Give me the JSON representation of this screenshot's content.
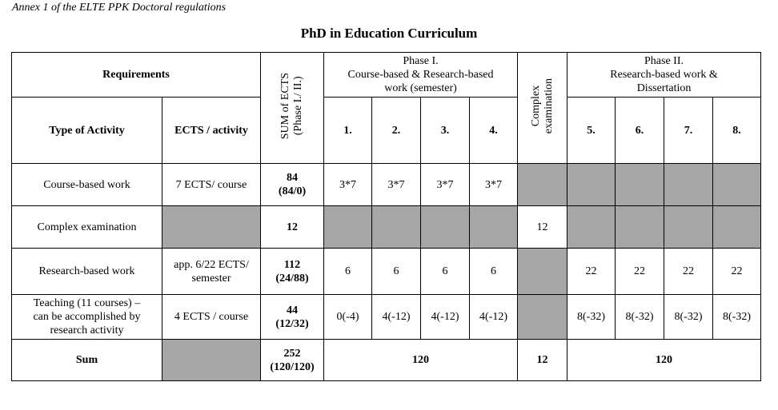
{
  "annex": "Annex 1 of the ELTE PPK Doctoral regulations",
  "title": "PhD in Education Curriculum",
  "header": {
    "requirements": "Requirements",
    "sum_line1": "SUM of ECTS",
    "sum_line2": "(Phase I./ II.)",
    "phase1_line1": "Phase I.",
    "phase1_line2": "Course-based & Research-based",
    "phase1_line3": "work (semester)",
    "complex_line1": "Complex",
    "complex_line2": "examination",
    "phase2_line1": "Phase II.",
    "phase2_line2": "Research-based work &",
    "phase2_line3": "Dissertation",
    "type_of_activity": "Type of Activity",
    "ects_per_activity": "ECTS / activity",
    "semesters": [
      "1.",
      "2.",
      "3.",
      "4.",
      "5.",
      "6.",
      "7.",
      "8."
    ]
  },
  "rows": [
    {
      "activity": "Course-based work",
      "ects": "7 ECTS/ course",
      "sum_line1": "84",
      "sum_line2": "(84/0)",
      "phase1": [
        "3*7",
        "3*7",
        "3*7",
        "3*7"
      ]
    },
    {
      "activity": "Complex examination",
      "sum": "12",
      "complex": "12"
    },
    {
      "activity": "Research-based work",
      "ects_line1": "app. 6/22 ECTS/",
      "ects_line2": "semester",
      "sum_line1": "112",
      "sum_line2": "(24/88)",
      "phase1": [
        "6",
        "6",
        "6",
        "6"
      ],
      "phase2": [
        "22",
        "22",
        "22",
        "22"
      ]
    },
    {
      "activity_line1": "Teaching (11 courses) –",
      "activity_line2": "can be accomplished by",
      "activity_line3": "research activity",
      "ects": "4 ECTS / course",
      "sum_line1": "44",
      "sum_line2": "(12/32)",
      "phase1": [
        "0(-4)",
        "4(-12)",
        "4(-12)",
        "4(-12)"
      ],
      "phase2": [
        "8(-32)",
        "8(-32)",
        "8(-32)",
        "8(-32)"
      ]
    }
  ],
  "sum_row": {
    "label": "Sum",
    "total_line1": "252",
    "total_line2": "(120/120)",
    "phase1_total": "120",
    "complex_total": "12",
    "phase2_total": "120"
  }
}
